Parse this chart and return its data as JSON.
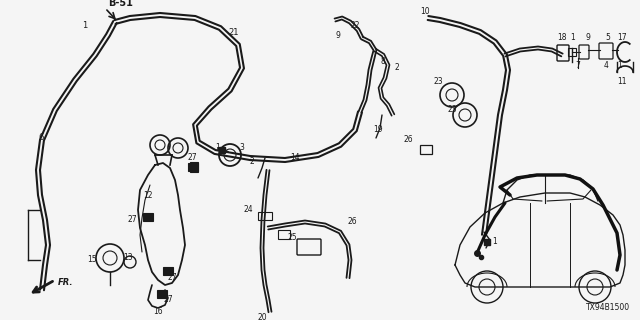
{
  "bg_color": "#f5f5f5",
  "line_color": "#1a1a1a",
  "bold_color": "#000000",
  "page_label": "B-51",
  "diagram_code": "TX94B1500",
  "figsize": [
    6.4,
    3.2
  ],
  "dpi": 100,
  "xlim": [
    0,
    640
  ],
  "ylim": [
    0,
    320
  ]
}
